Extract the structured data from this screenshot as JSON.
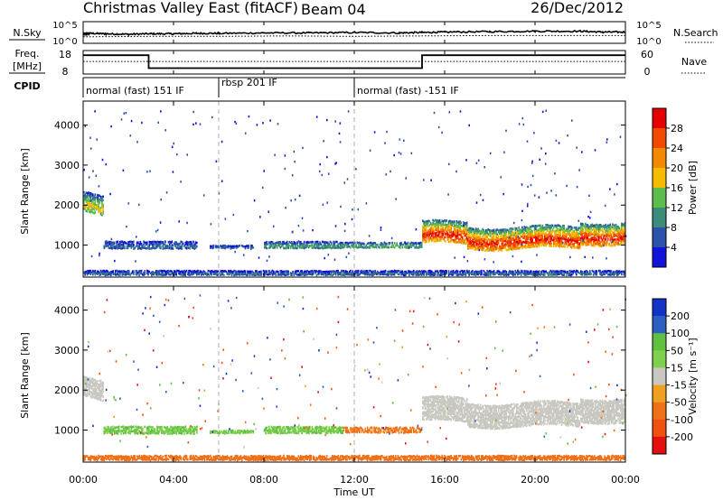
{
  "header": {
    "title": "Christmas Valley East (fitACF)",
    "beam": "Beam 04",
    "date": "26/Dec/2012"
  },
  "nsky_panel": {
    "left_label": "N.Sky",
    "right_label": "N.Search",
    "left_ticks": [
      "10^5",
      "10^0"
    ],
    "right_ticks": [
      "10^5",
      "10^0"
    ]
  },
  "freq_panel": {
    "left_label_1": "Freq.",
    "left_label_2": "[MHz]",
    "right_label": "Nave",
    "left_ticks": [
      "18",
      "8"
    ],
    "right_ticks": [
      "60",
      "0"
    ]
  },
  "cpid": {
    "label": "CPID",
    "segments": [
      {
        "start": 0,
        "end": 6,
        "text": "normal (fast) 151 IF"
      },
      {
        "start": 6,
        "end": 12,
        "text": "rbsp 201 IF"
      },
      {
        "start": 12,
        "end": 24,
        "text": "normal (fast) -151 IF"
      }
    ]
  },
  "xaxis": {
    "label": "Time UT",
    "ticks": [
      "00:00",
      "04:00",
      "08:00",
      "12:00",
      "16:00",
      "20:00",
      "00:00"
    ]
  },
  "power_colorbar": {
    "label": "Power [dB]",
    "ticks": [
      "28",
      "24",
      "20",
      "16",
      "12",
      "8",
      "4"
    ],
    "colors": [
      "#1212d8",
      "#2b52a8",
      "#3c8c7c",
      "#5cbc4c",
      "#f4bb00",
      "#f18a00",
      "#f14a00",
      "#e40000"
    ]
  },
  "velocity_colorbar": {
    "label": "Velocity [m s⁻¹]",
    "ticks": [
      "200",
      "100",
      "50",
      "15",
      "-15",
      "-50",
      "-100",
      "-200"
    ],
    "colors": [
      "#1232c8",
      "#2a60c0",
      "#60c040",
      "#80d050",
      "#c8c8c0",
      "#f0a020",
      "#f07018",
      "#f05010",
      "#e41010"
    ]
  },
  "chart_data": [
    {
      "type": "line",
      "panel": "N.Sky / N.Search",
      "x_unit": "hours UT",
      "xlim": [
        0,
        24
      ],
      "ylabel": "N.Sky",
      "ylim_log10": [
        0,
        5
      ],
      "series": [
        {
          "name": "N.Sky",
          "x": [
            0,
            0.3,
            1,
            2,
            3,
            4,
            5,
            6,
            8,
            10,
            12,
            14,
            15,
            16,
            18,
            20,
            22,
            23,
            24
          ],
          "y_log10": [
            2.1,
            2.3,
            2.2,
            2.1,
            2.2,
            2.2,
            2.3,
            2.3,
            2.4,
            2.4,
            2.5,
            2.4,
            2.5,
            2.6,
            2.7,
            2.8,
            2.8,
            2.6,
            2.6
          ]
        },
        {
          "name": "N.Search",
          "x": [
            0,
            3,
            6,
            9,
            12,
            15,
            18,
            21,
            24
          ],
          "y_log10": [
            1.5,
            1.6,
            1.6,
            1.7,
            1.6,
            1.7,
            1.8,
            1.8,
            1.8
          ]
        }
      ]
    },
    {
      "type": "line",
      "panel": "Freq. / Nave",
      "x_unit": "hours UT",
      "xlim": [
        0,
        24
      ],
      "ylim_left": [
        8,
        18
      ],
      "ylim_right": [
        0,
        60
      ],
      "series": [
        {
          "name": "Freq.",
          "x": [
            0,
            2.9,
            2.9,
            15,
            15,
            24
          ],
          "y": [
            16,
            16,
            10.5,
            10.5,
            16,
            16
          ]
        },
        {
          "name": "Nave",
          "x": [
            0,
            24
          ],
          "y": [
            32,
            32
          ]
        }
      ]
    },
    {
      "type": "heatmap",
      "panel": "Power",
      "xlabel": "Time UT",
      "ylabel": "Slant Range [km]",
      "xlim": [
        0,
        24
      ],
      "ylim": [
        200,
        4600
      ],
      "yticks": [
        1000,
        2000,
        3000,
        4000
      ],
      "colorbar": "Power [dB]",
      "zlim": [
        0,
        32
      ],
      "features": [
        {
          "t_start": 0.0,
          "t_end": 0.9,
          "range_center": 2100,
          "range_width": 500,
          "value": 14
        },
        {
          "t_start": 0.9,
          "t_end": 5.0,
          "range_center": 1000,
          "range_width": 200,
          "value": 6
        },
        {
          "t_start": 5.6,
          "t_end": 7.5,
          "range_center": 950,
          "range_width": 80,
          "value": 6
        },
        {
          "t_start": 8.0,
          "t_end": 11.5,
          "range_center": 1000,
          "range_width": 180,
          "value": 9
        },
        {
          "t_start": 11.5,
          "t_end": 15.0,
          "range_center": 1000,
          "range_width": 150,
          "value": 10
        },
        {
          "t_start": 15.0,
          "t_end": 24.0,
          "range_center": 1300,
          "range_width": 550,
          "value": 22
        },
        {
          "t_start": 0.0,
          "t_end": 24.0,
          "range_center": 300,
          "range_width": 120,
          "value": 6
        }
      ]
    },
    {
      "type": "heatmap",
      "panel": "Velocity",
      "xlabel": "Time UT",
      "ylabel": "Slant Range [km]",
      "xlim": [
        0,
        24
      ],
      "ylim": [
        200,
        4600
      ],
      "yticks": [
        1000,
        2000,
        3000,
        4000
      ],
      "colorbar": "Velocity [m s⁻¹]",
      "zlim": [
        -250,
        250
      ],
      "features": [
        {
          "t_start": 0.0,
          "t_end": 0.9,
          "range_center": 2100,
          "range_width": 500,
          "value": 0
        },
        {
          "t_start": 0.9,
          "t_end": 5.0,
          "range_center": 1000,
          "range_width": 200,
          "value": 30
        },
        {
          "t_start": 5.6,
          "t_end": 7.5,
          "range_center": 950,
          "range_width": 80,
          "value": 30
        },
        {
          "t_start": 8.0,
          "t_end": 11.5,
          "range_center": 1000,
          "range_width": 180,
          "value": 30
        },
        {
          "t_start": 11.5,
          "t_end": 15.0,
          "range_center": 1000,
          "range_width": 150,
          "value": -40
        },
        {
          "t_start": 15.0,
          "t_end": 24.0,
          "range_center": 1500,
          "range_width": 600,
          "value": 0
        },
        {
          "t_start": 0.0,
          "t_end": 24.0,
          "range_center": 300,
          "range_width": 120,
          "value": -60
        }
      ]
    }
  ]
}
